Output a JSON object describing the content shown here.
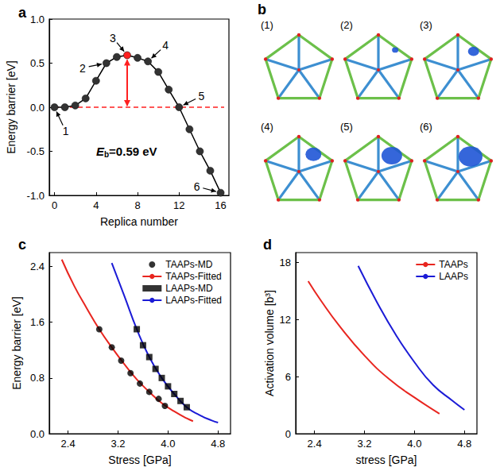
{
  "chart_data": [
    {
      "panel_label": "a",
      "type": "line",
      "x_label": "Replica number",
      "y_label": "Energy barrier [eV]",
      "x": [
        0,
        1,
        2,
        3,
        4,
        5,
        6,
        7,
        8,
        9,
        10,
        11,
        12,
        13,
        14,
        15,
        16
      ],
      "values": [
        0,
        0,
        0.02,
        0.1,
        0.3,
        0.5,
        0.57,
        0.59,
        0.56,
        0.52,
        0.4,
        0.2,
        0,
        -0.25,
        -0.5,
        -0.72,
        -0.97
      ],
      "color": "#000000",
      "marker": "circle",
      "colors": [
        "#333333",
        "#333333",
        "#333333",
        "#333333",
        "#333333",
        "#333333",
        "#333333",
        "#ff2020",
        "#333333",
        "#333333",
        "#333333",
        "#333333",
        "#333333",
        "#333333",
        "#333333",
        "#333333",
        "#333333"
      ],
      "xlim": [
        -0.5,
        16.8
      ],
      "xticks": [
        0,
        4,
        8,
        12,
        16
      ],
      "ylim": [
        -1,
        1
      ],
      "yticks": [
        {
          "value": -1,
          "label": "-1.0"
        },
        -0.5,
        {
          "value": 0,
          "label": "0.0"
        },
        0.5,
        {
          "value": 1,
          "label": "1.0"
        }
      ],
      "annotation": "Eb=0.59 eV",
      "point_labels": [
        {
          "text": "1",
          "x": 0
        },
        {
          "text": "2",
          "x": 5
        },
        {
          "text": "3",
          "x": 7
        },
        {
          "text": "4",
          "x": 9
        },
        {
          "text": "5",
          "x": 12
        },
        {
          "text": "6",
          "x": 16
        }
      ],
      "barrier_arrow": {
        "x": 7,
        "from": 0,
        "to": 0.59,
        "color": "#ff2020"
      },
      "reference_line": {
        "y": 0,
        "color": "#ff2020",
        "line_style": "dashed"
      },
      "grid": false
    },
    {
      "panel_label": "c",
      "type": "line",
      "x_label": "Stress [GPa]",
      "y_label": "Energy barrier [eV]",
      "xlim": [
        2.1,
        5.0
      ],
      "xticks": [
        2.4,
        3.2,
        {
          "value": 4,
          "label": "4.0"
        },
        4.8
      ],
      "ylim": [
        0,
        2.6
      ],
      "yticks": [
        {
          "value": 0,
          "label": "0.0"
        },
        0.8,
        1.6,
        2.4
      ],
      "legend": "upper right",
      "grid": false,
      "series": [
        {
          "name": "TAAPs-MD",
          "type": "scatter",
          "marker": "circle",
          "color": "#000000",
          "x": [
            2.9,
            3.1,
            3.25,
            3.4,
            3.55,
            3.7,
            3.85,
            3.95
          ],
          "values": [
            1.5,
            1.24,
            1.05,
            0.87,
            0.72,
            0.6,
            0.5,
            0.4
          ]
        },
        {
          "name": "TAAPs-Fitted",
          "type": "line",
          "marker": "none",
          "line_style": "solid",
          "color": "#e8251f",
          "x": [
            2.3,
            2.5,
            2.7,
            2.9,
            3.1,
            3.3,
            3.5,
            3.7,
            3.9,
            4.1,
            4.3,
            4.4
          ],
          "values": [
            2.5,
            2.12,
            1.8,
            1.5,
            1.24,
            1.0,
            0.78,
            0.6,
            0.44,
            0.32,
            0.22,
            0.18
          ]
        },
        {
          "name": "LAAPs-MD",
          "type": "scatter",
          "marker": "square",
          "color": "#000000",
          "x": [
            3.5,
            3.6,
            3.7,
            3.8,
            3.9,
            4.0,
            4.1,
            4.2,
            4.3
          ],
          "values": [
            1.5,
            1.27,
            1.1,
            0.93,
            0.8,
            0.68,
            0.57,
            0.47,
            0.38
          ]
        },
        {
          "name": "LAAPs-Fitted",
          "type": "line",
          "marker": "none",
          "line_style": "solid",
          "color": "#1b1bd6",
          "x": [
            3.1,
            3.3,
            3.5,
            3.7,
            3.9,
            4.1,
            4.3,
            4.5,
            4.7,
            4.8
          ],
          "values": [
            2.45,
            1.98,
            1.5,
            1.1,
            0.8,
            0.57,
            0.38,
            0.27,
            0.19,
            0.16
          ]
        }
      ]
    },
    {
      "panel_label": "d",
      "type": "line",
      "x_label": "stress [GPa]",
      "y_label": "Activation volume [b³]",
      "xlim": [
        2.1,
        5.0
      ],
      "xticks": [
        2.4,
        3.2,
        {
          "value": 4,
          "label": "4.0"
        },
        4.8
      ],
      "ylim": [
        0,
        19
      ],
      "yticks": [
        0,
        6,
        12,
        18
      ],
      "legend": "upper right",
      "grid": false,
      "series": [
        {
          "name": "TAAPs",
          "type": "line",
          "marker": "none",
          "line_style": "solid",
          "color": "#e8251f",
          "x": [
            2.3,
            2.5,
            2.8,
            3.2,
            3.6,
            4.0,
            4.4
          ],
          "values": [
            16,
            14,
            11.3,
            8.2,
            5.7,
            3.8,
            2.1
          ]
        },
        {
          "name": "LAAPs",
          "type": "line",
          "marker": "none",
          "line_style": "solid",
          "color": "#1b1bd6",
          "x": [
            3.1,
            3.4,
            3.7,
            4.0,
            4.3,
            4.6,
            4.8
          ],
          "values": [
            17.6,
            13.8,
            10.4,
            7.5,
            5.1,
            3.5,
            2.5
          ]
        }
      ]
    }
  ],
  "diagram": {
    "panel_label": "b",
    "frames": [
      "(1)",
      "(2)",
      "(3)",
      "(4)",
      "(5)",
      "(6)"
    ]
  }
}
